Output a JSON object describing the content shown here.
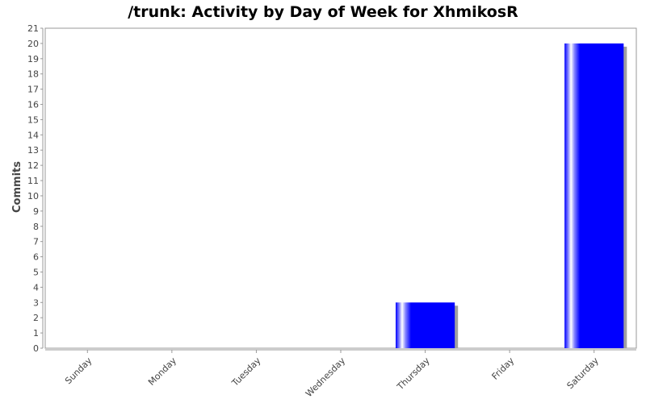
{
  "chart_data": {
    "type": "bar",
    "title": "/trunk: Activity by Day of Week for XhmikosR",
    "xlabel": "",
    "ylabel": "Commits",
    "categories": [
      "Sunday",
      "Monday",
      "Tuesday",
      "Wednesday",
      "Thursday",
      "Friday",
      "Saturday"
    ],
    "values": [
      0,
      0,
      0,
      0,
      3,
      0,
      20
    ],
    "ylim": [
      0,
      21
    ],
    "yticks": [
      0,
      1,
      2,
      3,
      4,
      5,
      6,
      7,
      8,
      9,
      10,
      11,
      12,
      13,
      14,
      15,
      16,
      17,
      18,
      19,
      20,
      21
    ],
    "grid": false,
    "legend": "none",
    "bar_color": "#0000ff",
    "shadow_color": "#a0a0a0"
  }
}
